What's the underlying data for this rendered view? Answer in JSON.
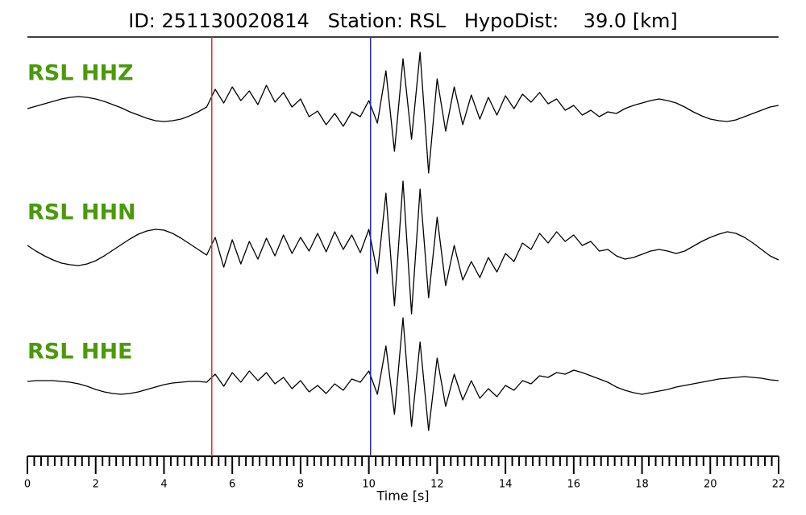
{
  "chart_data": {
    "type": "seismogram",
    "title": "ID: 251130020814   Station: RSL   HypoDist:    39.0 [km]",
    "xlabel": "Time [s]",
    "xlim": [
      0,
      22
    ],
    "xticks": [
      0,
      2,
      4,
      6,
      8,
      10,
      12,
      14,
      16,
      18,
      20,
      22
    ],
    "xminorticks": [
      0.2,
      0.4,
      0.6,
      0.8,
      1,
      1.2,
      1.4,
      1.6,
      1.8,
      2.2,
      2.4,
      2.6,
      2.8,
      3,
      3.2,
      3.4,
      3.6,
      3.8,
      4.2,
      4.4,
      4.6,
      4.8,
      5,
      5.2,
      5.4,
      5.6,
      5.8,
      6.2,
      6.4,
      6.6,
      6.8,
      7,
      7.2,
      7.4,
      7.6,
      7.8,
      8.2,
      8.4,
      8.6,
      8.8,
      9,
      9.2,
      9.4,
      9.6,
      9.8,
      10.2,
      10.4,
      10.6,
      10.8,
      11,
      11.2,
      11.4,
      11.6,
      11.8,
      12.2,
      12.4,
      12.6,
      12.8,
      13,
      13.2,
      13.4,
      13.6,
      13.8,
      14.2,
      14.4,
      14.6,
      14.8,
      15,
      15.2,
      15.4,
      15.6,
      15.8,
      16.2,
      16.4,
      16.6,
      16.8,
      17,
      17.2,
      17.4,
      17.6,
      17.8,
      18.2,
      18.4,
      18.6,
      18.8,
      19,
      19.2,
      19.4,
      19.6,
      19.8,
      20.2,
      20.4,
      20.6,
      20.8,
      21,
      21.2,
      21.4,
      21.6,
      21.8
    ],
    "picks": [
      {
        "x": 5.4,
        "color": "#e0302a"
      },
      {
        "x": 10.05,
        "color": "#2a2ab0"
      }
    ],
    "label_color": "#4a9a0a",
    "x": [
      0,
      0.25,
      0.5,
      0.75,
      1,
      1.25,
      1.5,
      1.75,
      2,
      2.25,
      2.5,
      2.75,
      3,
      3.25,
      3.5,
      3.75,
      4,
      4.25,
      4.5,
      4.75,
      5,
      5.25,
      5.5,
      5.75,
      6,
      6.25,
      6.5,
      6.75,
      7,
      7.25,
      7.5,
      7.75,
      8,
      8.25,
      8.5,
      8.75,
      9,
      9.25,
      9.5,
      9.75,
      10,
      10.25,
      10.5,
      10.75,
      11,
      11.25,
      11.5,
      11.75,
      12,
      12.25,
      12.5,
      12.75,
      13,
      13.25,
      13.5,
      13.75,
      14,
      14.25,
      14.5,
      14.75,
      15,
      15.25,
      15.5,
      15.75,
      16,
      16.25,
      16.5,
      16.75,
      17,
      17.25,
      17.5,
      17.75,
      18,
      18.25,
      18.5,
      18.75,
      19,
      19.25,
      19.5,
      19.75,
      20,
      20.25,
      20.5,
      20.75,
      21,
      21.25,
      21.5,
      21.75,
      22
    ],
    "series": [
      {
        "name": "RSL HHZ",
        "color": "#000000",
        "values": [
          -2,
          1,
          4,
          7,
          10,
          12,
          13,
          12,
          10,
          7,
          3,
          -1,
          -6,
          -10,
          -14,
          -17,
          -18,
          -17,
          -15,
          -11,
          -6,
          0,
          22,
          5,
          25,
          8,
          20,
          3,
          27,
          6,
          18,
          0,
          10,
          -12,
          -5,
          -22,
          -8,
          -24,
          -6,
          -12,
          8,
          -20,
          45,
          -55,
          60,
          -40,
          68,
          -82,
          35,
          -30,
          25,
          -22,
          15,
          -15,
          12,
          -10,
          14,
          -2,
          16,
          6,
          18,
          4,
          10,
          -4,
          2,
          -10,
          -4,
          -12,
          -6,
          -8,
          -2,
          2,
          5,
          8,
          10,
          8,
          5,
          0,
          -6,
          -11,
          -15,
          -17,
          -18,
          -16,
          -12,
          -8,
          -4,
          0,
          2
        ]
      },
      {
        "name": "RSL HHN",
        "color": "#000000",
        "values": [
          5,
          -2,
          -8,
          -13,
          -17,
          -19,
          -20,
          -18,
          -14,
          -8,
          -1,
          6,
          13,
          19,
          23,
          25,
          24,
          20,
          14,
          7,
          0,
          -7,
          15,
          -22,
          12,
          -18,
          10,
          -12,
          14,
          -8,
          18,
          -5,
          15,
          -2,
          20,
          -3,
          22,
          0,
          18,
          -4,
          25,
          -30,
          70,
          -70,
          85,
          -80,
          75,
          -60,
          40,
          -45,
          5,
          -38,
          -15,
          -35,
          -10,
          -28,
          -5,
          -15,
          8,
          0,
          20,
          8,
          22,
          10,
          18,
          5,
          10,
          -2,
          0,
          -8,
          -12,
          -10,
          -6,
          -2,
          0,
          -2,
          -5,
          -2,
          4,
          10,
          15,
          19,
          22,
          20,
          15,
          8,
          0,
          -8,
          -13
        ]
      },
      {
        "name": "RSL HHE",
        "color": "#000000",
        "values": [
          1,
          2,
          2,
          2,
          1,
          0,
          -2,
          -5,
          -9,
          -12,
          -14,
          -15,
          -14,
          -12,
          -9,
          -6,
          -3,
          -1,
          0,
          1,
          1,
          0,
          10,
          -5,
          12,
          0,
          14,
          2,
          12,
          -2,
          6,
          -8,
          2,
          -12,
          -4,
          -14,
          -2,
          -10,
          4,
          0,
          14,
          -15,
          45,
          -40,
          80,
          -55,
          50,
          -60,
          30,
          -30,
          10,
          -22,
          2,
          -20,
          -8,
          -18,
          -4,
          -10,
          2,
          -2,
          8,
          6,
          12,
          10,
          15,
          12,
          8,
          4,
          0,
          -6,
          -10,
          -13,
          -15,
          -13,
          -11,
          -9,
          -6,
          -4,
          -2,
          0,
          2,
          4,
          5,
          6,
          7,
          6,
          5,
          3,
          2
        ]
      }
    ]
  }
}
